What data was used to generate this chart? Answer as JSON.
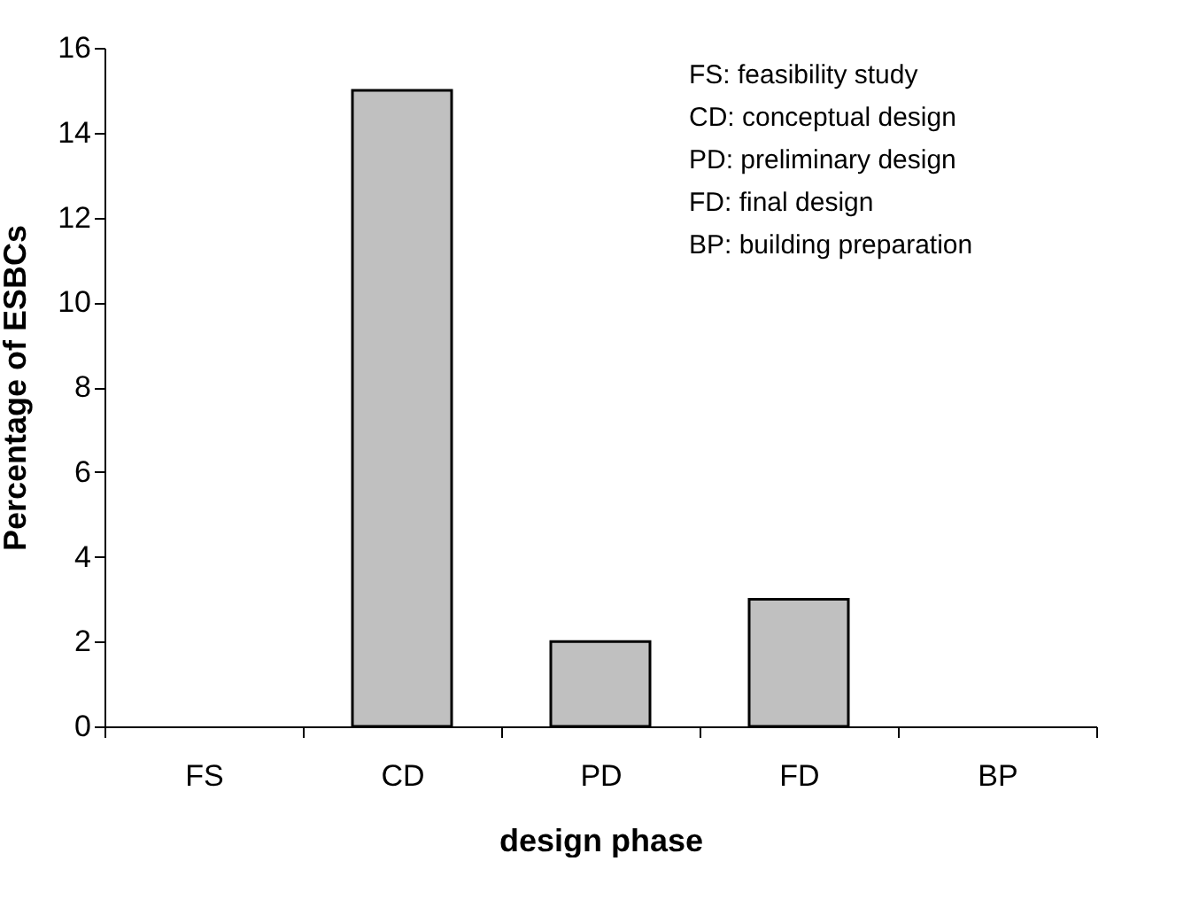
{
  "chart_data": {
    "type": "bar",
    "xlabel": "design phase",
    "ylabel": "Percentage of ESBCs",
    "categories": [
      "FS",
      "CD",
      "PD",
      "FD",
      "BP"
    ],
    "values": [
      0,
      15,
      2,
      3,
      0
    ],
    "color": "#c0c0c0",
    "ylim": [
      0,
      16
    ],
    "yticks": [
      0,
      2,
      4,
      6,
      8,
      10,
      12,
      14,
      16
    ],
    "grid": false,
    "annotations": [
      "FS: feasibility study",
      "CD: conceptual design",
      "PD: preliminary design",
      "FD: final design",
      "BP: building preparation"
    ]
  }
}
